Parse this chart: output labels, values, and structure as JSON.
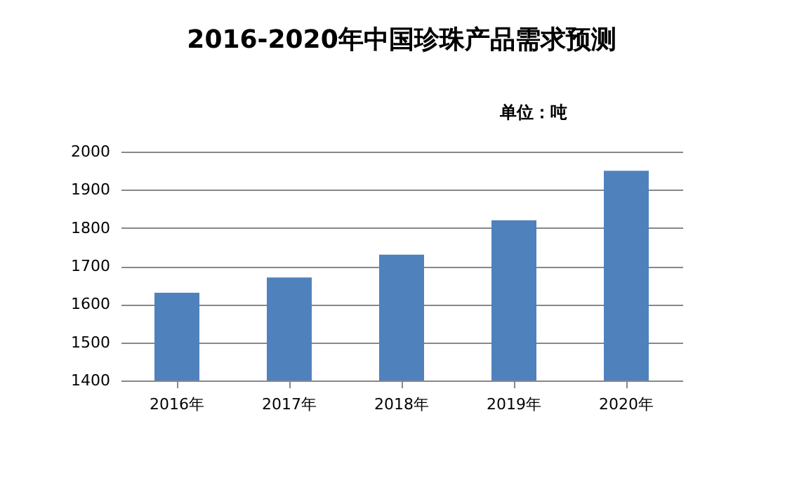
{
  "chart_data": {
    "type": "bar",
    "title": "2016-2020年中国珍珠产品需求预测",
    "subtitle": "单位：吨",
    "categories": [
      "2016年",
      "2017年",
      "2018年",
      "2019年",
      "2020年"
    ],
    "values": [
      1630,
      1670,
      1730,
      1820,
      1950
    ],
    "color": "#4f81bd",
    "ylim": [
      1400,
      2000
    ],
    "yticks": [
      1400,
      1500,
      1600,
      1700,
      1800,
      1900,
      2000
    ],
    "grid": "y"
  }
}
